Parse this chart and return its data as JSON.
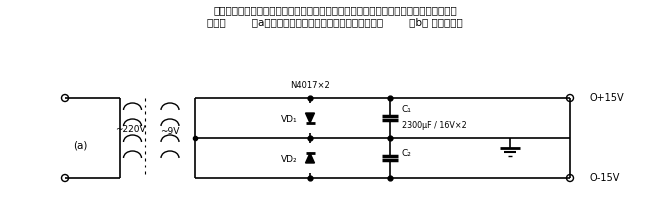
{
  "title_line1": "如需制作正负对称电源，但又没有带中心抽头的变压器，当次级电压较低、纹波较粗时可",
  "title_line2": "采用图        （a）所示电路；在次级电压稍高时，可采用图        （b） 所示电路。",
  "label_a": "(a)",
  "voltage_primary": "~220V",
  "voltage_secondary": "~9V",
  "diode_top_label": "VD₁",
  "diode_bot_label": "VD₂",
  "cap_top_label": "C₁",
  "cap_bot_label": "C₂",
  "cap_spec": "2300μF / 16V×2",
  "diode_spec": "N4017×2",
  "output_pos": "O+15V",
  "output_neg": "O-15V",
  "bg_color": "#ffffff",
  "line_color": "#000000",
  "text_color": "#000000"
}
